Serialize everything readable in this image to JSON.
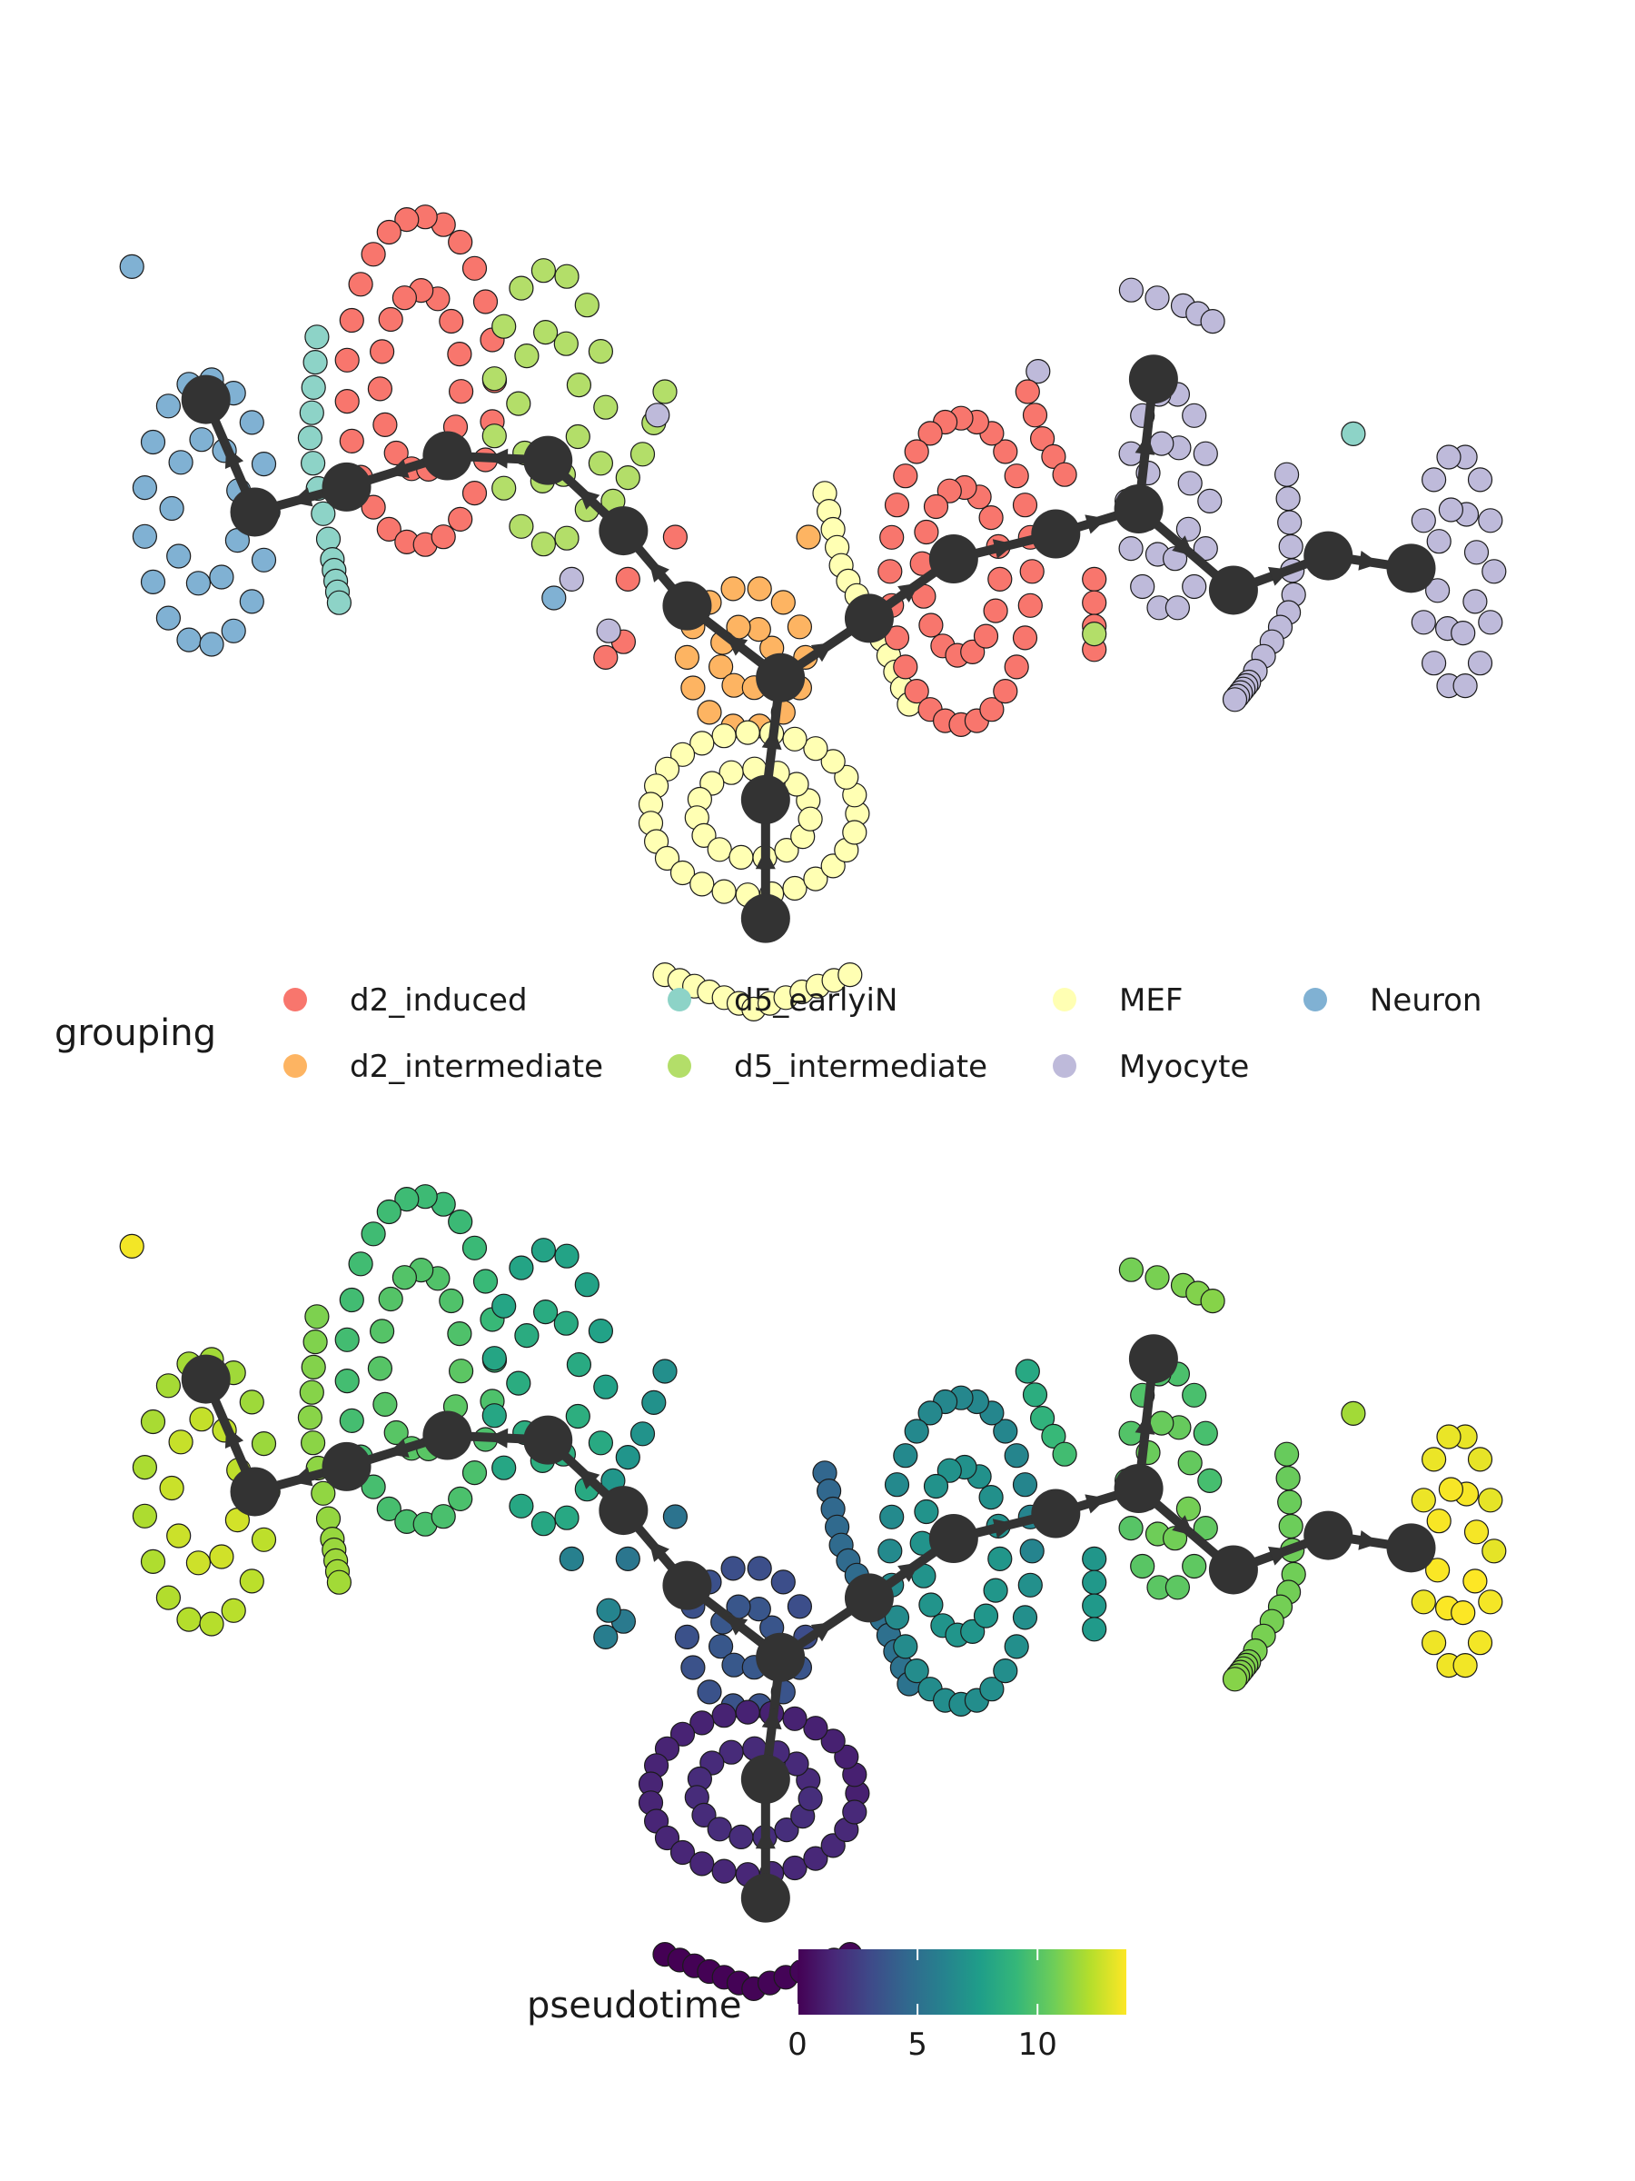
{
  "chart_data": [
    {
      "type": "scatter",
      "title": "",
      "xlabel": "",
      "ylabel": "",
      "grid": false,
      "axes_visible": false,
      "color_by": "grouping",
      "legend": {
        "title": "grouping",
        "placement": "bottom",
        "entries": [
          {
            "label": "d2_induced",
            "color": "#F8766D"
          },
          {
            "label": "d5_earlyiN",
            "color": "#8DD3C7"
          },
          {
            "label": "MEF",
            "color": "#FFFFB3"
          },
          {
            "label": "Neuron",
            "color": "#80B1D3"
          },
          {
            "label": "d2_intermediate",
            "color": "#FDB462"
          },
          {
            "label": "d5_intermediate",
            "color": "#B3DE69"
          },
          {
            "label": "Myocyte",
            "color": "#BEBADA"
          }
        ]
      },
      "xlim": [
        0,
        1000
      ],
      "ylim": [
        -560,
        0
      ],
      "series": [
        {
          "group": "Neuron",
          "shape": "ellipse",
          "cx": 90,
          "cy": -252,
          "rx": 42,
          "ry": 85,
          "n": 26,
          "pattern": "ring"
        },
        {
          "group": "Neuron",
          "shape": "points",
          "points": [
            [
              40,
              -95
            ],
            [
              325,
              -307
            ]
          ]
        },
        {
          "group": "d5_earlyiN",
          "shape": "curve",
          "points": [
            [
              165,
              -140
            ],
            [
              160,
              -210
            ],
            [
              175,
              -280
            ],
            [
              180,
              -310
            ]
          ],
          "n": 14
        },
        {
          "group": "d2_induced",
          "shape": "ellipse",
          "cx": 235,
          "cy": -168,
          "rx": 50,
          "ry": 105,
          "n": 40,
          "pattern": "loop"
        },
        {
          "group": "d5_intermediate",
          "shape": "ellipse",
          "cx": 322,
          "cy": -185,
          "rx": 38,
          "ry": 88,
          "n": 24,
          "pattern": "loop"
        },
        {
          "group": "d5_intermediate",
          "shape": "curve",
          "points": [
            [
              400,
              -175
            ],
            [
              385,
              -215
            ],
            [
              365,
              -245
            ]
          ],
          "n": 5
        },
        {
          "group": "d2_induced",
          "shape": "points",
          "points": [
            [
              407,
              -268
            ],
            [
              375,
              -295
            ],
            [
              372,
              -335
            ],
            [
              360,
              -345
            ]
          ]
        },
        {
          "group": "Myocyte",
          "shape": "points",
          "points": [
            [
              395,
              -190
            ],
            [
              337,
              -295
            ],
            [
              362,
              -328
            ],
            [
              652,
              -162
            ]
          ]
        },
        {
          "group": "d2_intermediate",
          "shape": "ellipse",
          "cx": 455,
          "cy": -345,
          "rx": 40,
          "ry": 45,
          "n": 22,
          "pattern": "blob"
        },
        {
          "group": "MEF",
          "shape": "curve",
          "points": [
            [
              508,
              -240
            ],
            [
              520,
              -290
            ],
            [
              545,
              -330
            ],
            [
              565,
              -375
            ]
          ],
          "n": 14
        },
        {
          "group": "MEF",
          "shape": "ellipse",
          "cx": 460,
          "cy": -445,
          "rx": 70,
          "ry": 52,
          "n": 42,
          "pattern": "ring"
        },
        {
          "group": "MEF",
          "shape": "curve",
          "points": [
            [
              400,
              -548
            ],
            [
              460,
              -570
            ],
            [
              525,
              -548
            ]
          ],
          "n": 13
        },
        {
          "group": "d2_intermediate",
          "shape": "points",
          "points": [
            [
              497,
              -268
            ]
          ]
        },
        {
          "group": "d2_induced",
          "shape": "ellipse",
          "cx": 600,
          "cy": -290,
          "rx": 48,
          "ry": 98,
          "n": 44,
          "pattern": "loop"
        },
        {
          "group": "d2_induced",
          "shape": "curve",
          "points": [
            [
              645,
              -175
            ],
            [
              655,
              -205
            ],
            [
              670,
              -228
            ]
          ],
          "n": 5
        },
        {
          "group": "d2_induced",
          "shape": "curve",
          "points": [
            [
              690,
              -295
            ],
            [
              690,
              -340
            ]
          ],
          "n": 4
        },
        {
          "group": "d5_intermediate",
          "shape": "points",
          "points": [
            [
              690,
              -330
            ]
          ]
        },
        {
          "group": "Myocyte",
          "shape": "curve",
          "points": [
            [
              715,
              -110
            ],
            [
              750,
              -120
            ],
            [
              770,
              -130
            ]
          ],
          "n": 5
        },
        {
          "group": "d5_earlyiN",
          "shape": "points",
          "points": [
            [
              865,
              -202
            ]
          ]
        },
        {
          "group": "Myocyte",
          "shape": "ellipse",
          "cx": 740,
          "cy": -245,
          "rx": 28,
          "ry": 70,
          "n": 22,
          "pattern": "loop"
        },
        {
          "group": "Myocyte",
          "shape": "curve",
          "points": [
            [
              820,
              -228
            ],
            [
              825,
              -310
            ],
            [
              795,
              -360
            ],
            [
              785,
              -372
            ]
          ],
          "n": 17
        },
        {
          "group": "Myocyte",
          "shape": "ellipse",
          "cx": 935,
          "cy": -290,
          "rx": 25,
          "ry": 75,
          "n": 22,
          "pattern": "ring"
        }
      ],
      "trajectory": {
        "nodes": [
          {
            "id": 1,
            "x": 90,
            "y": -180
          },
          {
            "id": 2,
            "x": 123,
            "y": -252
          },
          {
            "id": 3,
            "x": 185,
            "y": -236
          },
          {
            "id": 4,
            "x": 253,
            "y": -216
          },
          {
            "id": 5,
            "x": 321,
            "y": -219
          },
          {
            "id": 6,
            "x": 372,
            "y": -264
          },
          {
            "id": 7,
            "x": 415,
            "y": -312
          },
          {
            "id": 8,
            "x": 478,
            "y": -358
          },
          {
            "id": 9,
            "x": 538,
            "y": -320
          },
          {
            "id": 10,
            "x": 595,
            "y": -282
          },
          {
            "id": 11,
            "x": 664,
            "y": -266
          },
          {
            "id": 12,
            "x": 720,
            "y": -250
          },
          {
            "id": 13,
            "x": 730,
            "y": -167
          },
          {
            "id": 14,
            "x": 784,
            "y": -302
          },
          {
            "id": 15,
            "x": 848,
            "y": -280
          },
          {
            "id": 16,
            "x": 904,
            "y": -288
          },
          {
            "id": 17,
            "x": 468,
            "y": -436
          },
          {
            "id": 18,
            "x": 468,
            "y": -512
          }
        ],
        "edges": [
          [
            18,
            17
          ],
          [
            17,
            8
          ],
          [
            8,
            7
          ],
          [
            7,
            6
          ],
          [
            6,
            5
          ],
          [
            5,
            4
          ],
          [
            4,
            3
          ],
          [
            3,
            2
          ],
          [
            2,
            1
          ],
          [
            8,
            9
          ],
          [
            9,
            10
          ],
          [
            10,
            11
          ],
          [
            11,
            12
          ],
          [
            12,
            13
          ],
          [
            12,
            14
          ],
          [
            14,
            15
          ],
          [
            15,
            16
          ]
        ]
      }
    },
    {
      "type": "scatter",
      "title": "",
      "xlabel": "",
      "ylabel": "",
      "grid": false,
      "axes_visible": false,
      "color_by": "pseudotime",
      "colorbar": {
        "title": "pseudotime",
        "colormap": "viridis",
        "range": [
          0,
          13.7
        ],
        "ticks": [
          0,
          5,
          10
        ],
        "placement": "bottom"
      },
      "xlim": [
        0,
        1000
      ],
      "ylim": [
        -560,
        0
      ],
      "series": [
        {
          "shape": "ellipse",
          "cx": 90,
          "cy": -252,
          "rx": 42,
          "ry": 85,
          "n": 26,
          "pattern": "ring",
          "pseudotime": [
            11.6,
            12.8
          ]
        },
        {
          "shape": "points",
          "points": [
            [
              40,
              -95
            ]
          ],
          "pseudotime": [
            13.5
          ]
        },
        {
          "shape": "curve",
          "points": [
            [
              165,
              -140
            ],
            [
              160,
              -210
            ],
            [
              175,
              -280
            ],
            [
              180,
              -310
            ]
          ],
          "n": 14,
          "pseudotime": [
            11.0,
            11.8
          ]
        },
        {
          "shape": "ellipse",
          "cx": 235,
          "cy": -168,
          "rx": 50,
          "ry": 105,
          "n": 40,
          "pattern": "loop",
          "pseudotime": [
            9.2,
            10.2
          ]
        },
        {
          "shape": "ellipse",
          "cx": 322,
          "cy": -185,
          "rx": 38,
          "ry": 88,
          "n": 24,
          "pattern": "loop",
          "pseudotime": [
            7.8,
            8.6
          ]
        },
        {
          "shape": "curve",
          "points": [
            [
              400,
              -175
            ],
            [
              385,
              -215
            ],
            [
              365,
              -245
            ]
          ],
          "n": 5,
          "pseudotime": [
            6.8,
            7.2
          ]
        },
        {
          "shape": "points",
          "points": [
            [
              407,
              -268
            ],
            [
              375,
              -295
            ],
            [
              372,
              -335
            ],
            [
              360,
              -345
            ],
            [
              337,
              -295
            ],
            [
              362,
              -328
            ]
          ],
          "pseudotime": [
            5.2,
            6.2
          ]
        },
        {
          "shape": "ellipse",
          "cx": 455,
          "cy": -345,
          "rx": 40,
          "ry": 45,
          "n": 22,
          "pattern": "blob",
          "pseudotime": [
            3.2,
            3.8
          ]
        },
        {
          "shape": "curve",
          "points": [
            [
              508,
              -240
            ],
            [
              520,
              -290
            ],
            [
              545,
              -330
            ],
            [
              565,
              -375
            ]
          ],
          "n": 14,
          "pseudotime": [
            4.5,
            5.2
          ]
        },
        {
          "shape": "ellipse",
          "cx": 460,
          "cy": -445,
          "rx": 70,
          "ry": 52,
          "n": 42,
          "pattern": "ring",
          "pseudotime": [
            1.2,
            1.8
          ]
        },
        {
          "shape": "curve",
          "points": [
            [
              400,
              -548
            ],
            [
              460,
              -570
            ],
            [
              525,
              -548
            ]
          ],
          "n": 13,
          "pseudotime": [
            0.0,
            0.2
          ]
        },
        {
          "shape": "ellipse",
          "cx": 600,
          "cy": -290,
          "rx": 48,
          "ry": 98,
          "n": 44,
          "pattern": "loop",
          "pseudotime": [
            6.2,
            7.2
          ]
        },
        {
          "shape": "curve",
          "points": [
            [
              645,
              -175
            ],
            [
              655,
              -205
            ],
            [
              670,
              -228
            ]
          ],
          "n": 5,
          "pseudotime": [
            8.2,
            9.5
          ]
        },
        {
          "shape": "curve",
          "points": [
            [
              690,
              -295
            ],
            [
              690,
              -340
            ]
          ],
          "n": 4,
          "pseudotime": [
            7.2,
            7.4
          ]
        },
        {
          "shape": "curve",
          "points": [
            [
              715,
              -110
            ],
            [
              750,
              -120
            ],
            [
              770,
              -130
            ]
          ],
          "n": 5,
          "pseudotime": [
            10.8,
            11.2
          ]
        },
        {
          "shape": "points",
          "points": [
            [
              865,
              -202
            ]
          ],
          "pseudotime": [
            11.8
          ]
        },
        {
          "shape": "ellipse",
          "cx": 740,
          "cy": -245,
          "rx": 28,
          "ry": 70,
          "n": 22,
          "pattern": "loop",
          "pseudotime": [
            9.6,
            10.8
          ]
        },
        {
          "shape": "curve",
          "points": [
            [
              820,
              -228
            ],
            [
              825,
              -310
            ],
            [
              795,
              -360
            ],
            [
              785,
              -372
            ]
          ],
          "n": 17,
          "pseudotime": [
            10.5,
            11.2
          ]
        },
        {
          "shape": "ellipse",
          "cx": 935,
          "cy": -290,
          "rx": 25,
          "ry": 75,
          "n": 22,
          "pattern": "ring",
          "pseudotime": [
            13.2,
            13.7
          ]
        }
      ],
      "trajectory": {
        "nodes": [
          {
            "id": 1,
            "x": 90,
            "y": -180
          },
          {
            "id": 2,
            "x": 123,
            "y": -252
          },
          {
            "id": 3,
            "x": 185,
            "y": -236
          },
          {
            "id": 4,
            "x": 253,
            "y": -216
          },
          {
            "id": 5,
            "x": 321,
            "y": -219
          },
          {
            "id": 6,
            "x": 372,
            "y": -264
          },
          {
            "id": 7,
            "x": 415,
            "y": -312
          },
          {
            "id": 8,
            "x": 478,
            "y": -358
          },
          {
            "id": 9,
            "x": 538,
            "y": -320
          },
          {
            "id": 10,
            "x": 595,
            "y": -282
          },
          {
            "id": 11,
            "x": 664,
            "y": -266
          },
          {
            "id": 12,
            "x": 720,
            "y": -250
          },
          {
            "id": 13,
            "x": 730,
            "y": -167
          },
          {
            "id": 14,
            "x": 784,
            "y": -302
          },
          {
            "id": 15,
            "x": 848,
            "y": -280
          },
          {
            "id": 16,
            "x": 904,
            "y": -288
          },
          {
            "id": 17,
            "x": 468,
            "y": -436
          },
          {
            "id": 18,
            "x": 468,
            "y": -512
          }
        ],
        "edges": [
          [
            18,
            17
          ],
          [
            17,
            8
          ],
          [
            8,
            7
          ],
          [
            7,
            6
          ],
          [
            6,
            5
          ],
          [
            5,
            4
          ],
          [
            4,
            3
          ],
          [
            3,
            2
          ],
          [
            2,
            1
          ],
          [
            8,
            9
          ],
          [
            9,
            10
          ],
          [
            10,
            11
          ],
          [
            11,
            12
          ],
          [
            12,
            13
          ],
          [
            12,
            14
          ],
          [
            14,
            15
          ],
          [
            15,
            16
          ]
        ]
      }
    }
  ]
}
